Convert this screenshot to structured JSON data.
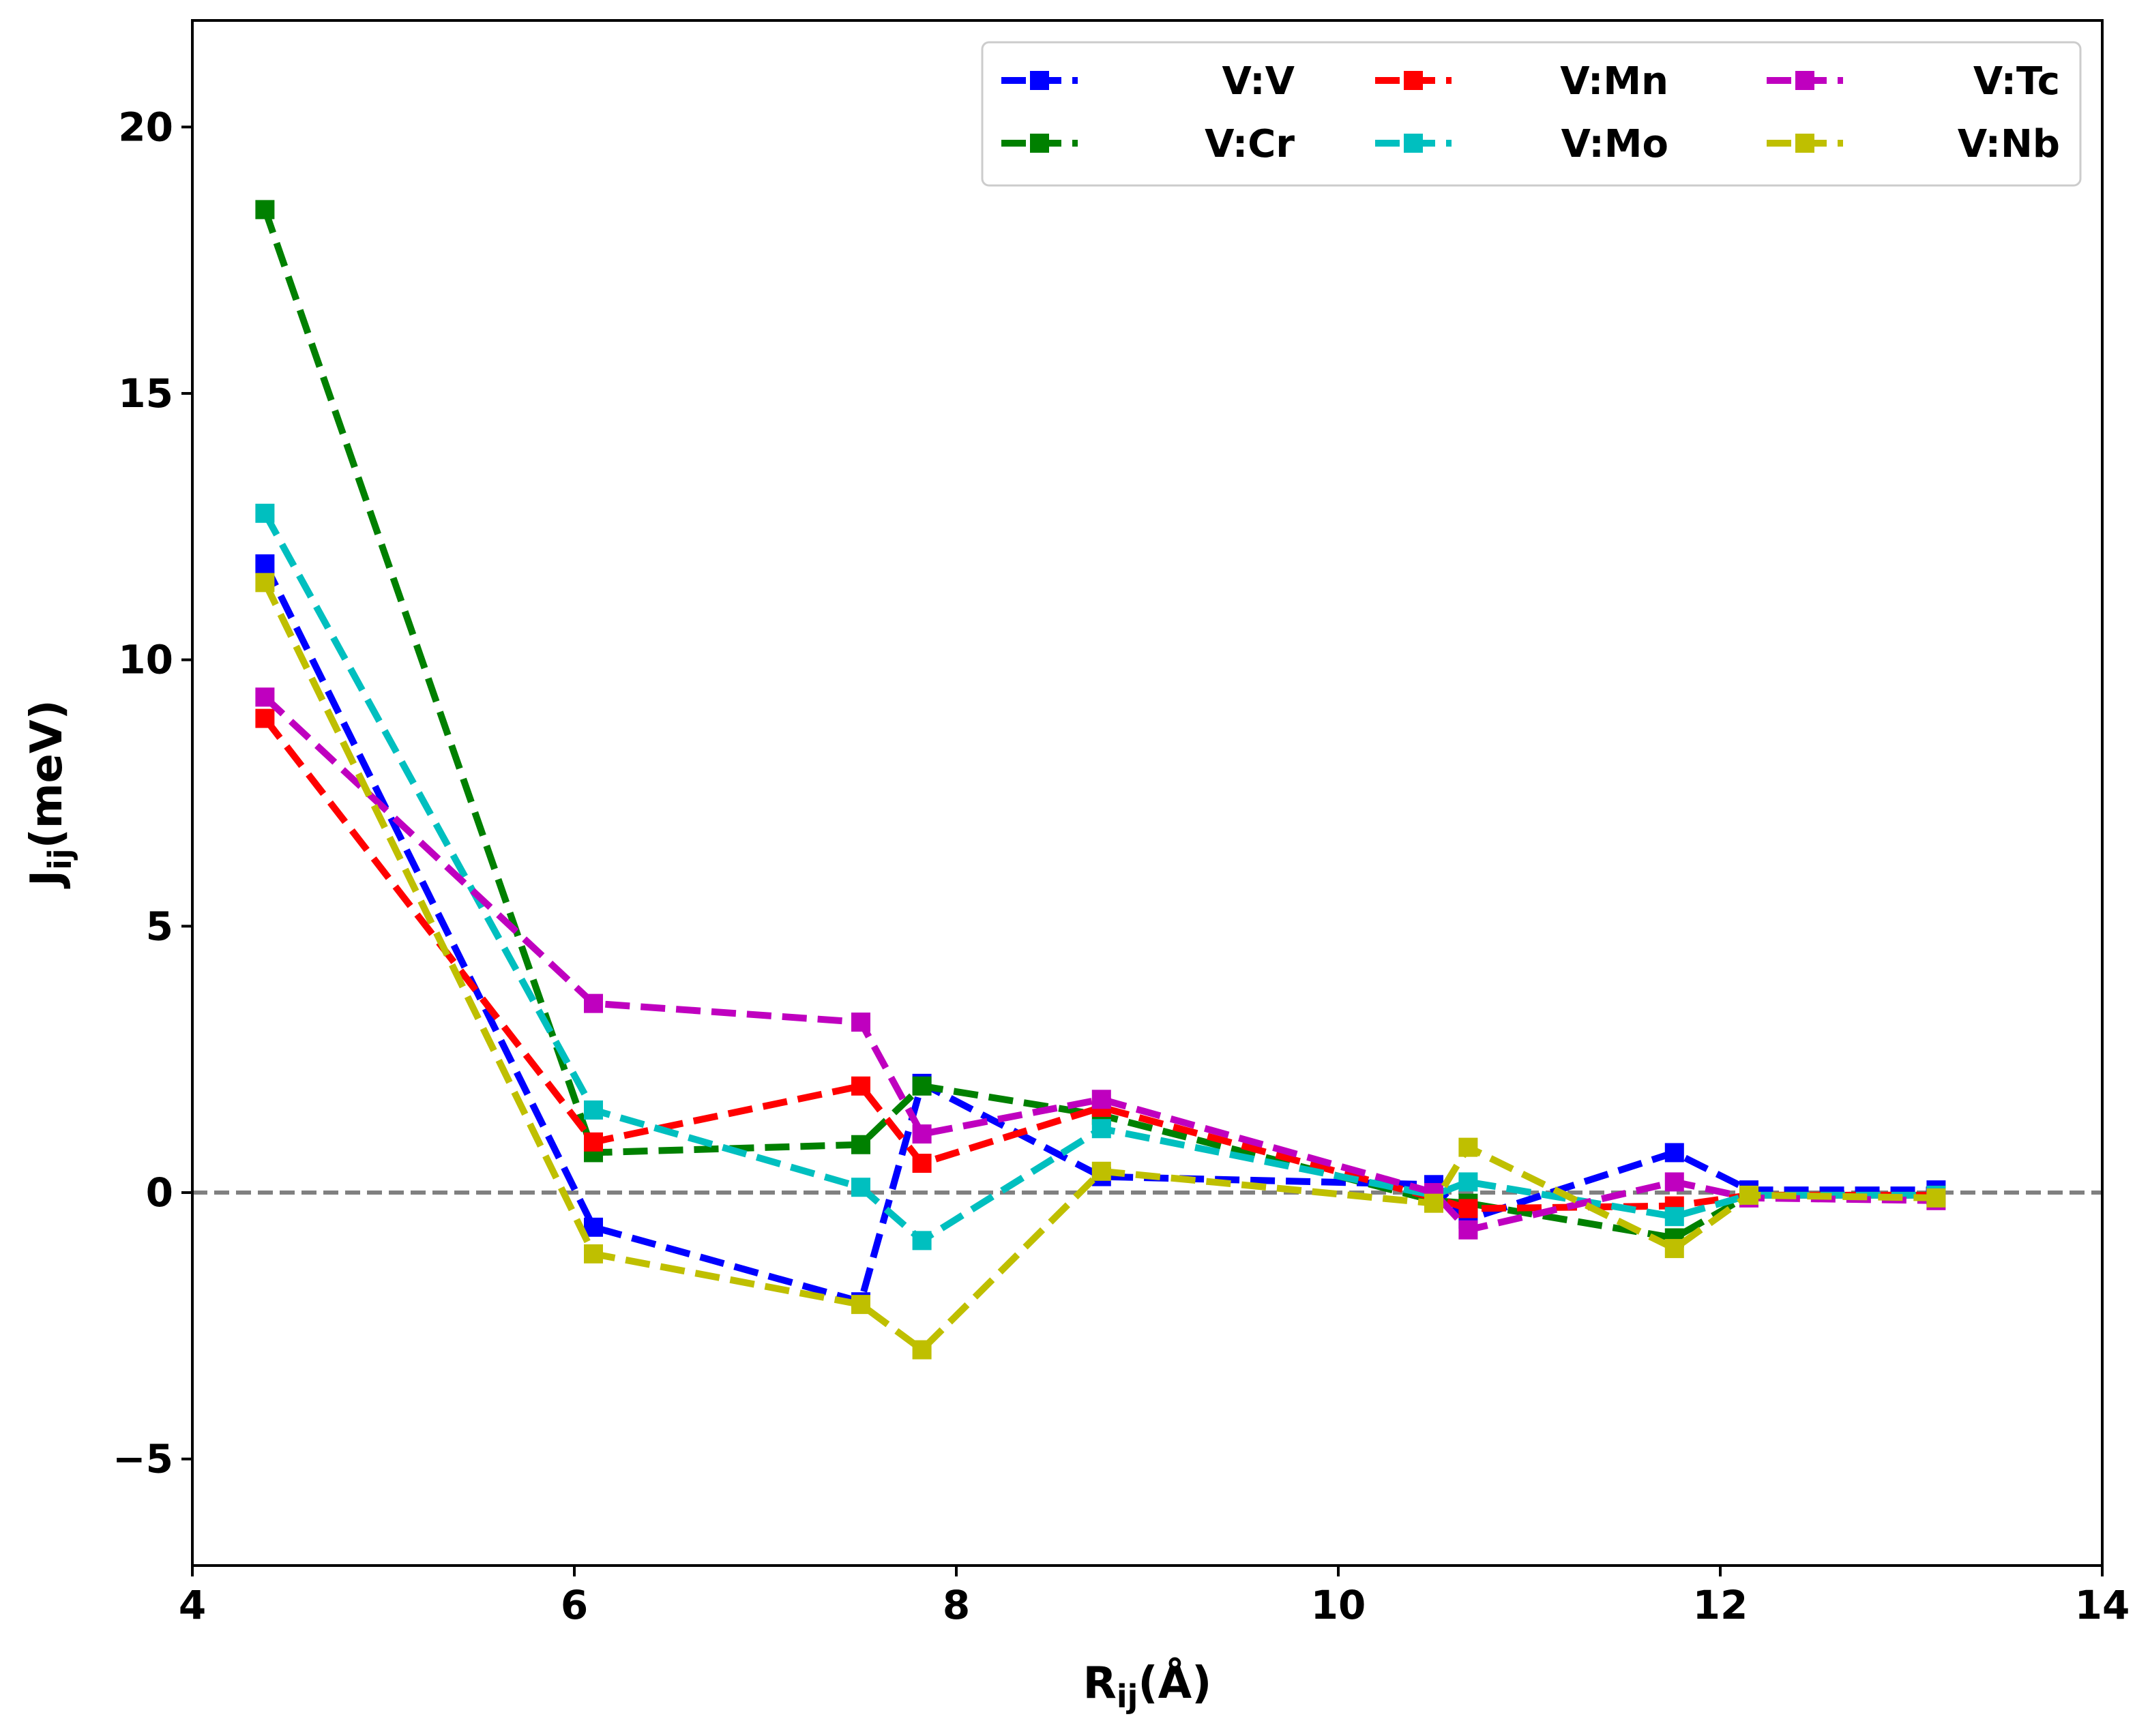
{
  "chart_data": {
    "type": "line",
    "xlabel": {
      "main": "R",
      "sub": "ij",
      "rest": "(Å)"
    },
    "ylabel": {
      "main": "J",
      "sub": "ij",
      "rest": "(meV)"
    },
    "xlim": [
      4,
      14
    ],
    "ylim": [
      -7,
      22
    ],
    "xticks": [
      4,
      6,
      8,
      10,
      12,
      14
    ],
    "yticks": [
      -5,
      0,
      5,
      10,
      15,
      20
    ],
    "ytick_labels": [
      "−5",
      "0",
      "5",
      "10",
      "15",
      "20"
    ],
    "reference_line": {
      "y": 0,
      "color": "#808080",
      "style": "dashed"
    },
    "grid": false,
    "legend_position": "top-right",
    "legend_columns": 3,
    "x": [
      4.38,
      6.1,
      7.5,
      7.82,
      8.76,
      10.5,
      10.68,
      11.76,
      12.15,
      13.13
    ],
    "series": [
      {
        "name": "V:V",
        "color": "#0000ff",
        "values": [
          11.8,
          -0.65,
          -2.05,
          2.05,
          0.3,
          0.15,
          -0.5,
          0.75,
          0.05,
          0.05
        ]
      },
      {
        "name": "V:Cr",
        "color": "#008000",
        "values": [
          18.45,
          0.75,
          0.9,
          2.0,
          1.45,
          -0.15,
          -0.2,
          -0.85,
          -0.05,
          -0.05
        ]
      },
      {
        "name": "V:Mn",
        "color": "#ff0000",
        "values": [
          8.9,
          0.95,
          2.0,
          0.55,
          1.6,
          -0.1,
          -0.3,
          -0.25,
          -0.05,
          -0.05
        ]
      },
      {
        "name": "V:Mo",
        "color": "#00bfbf",
        "values": [
          12.75,
          1.55,
          0.1,
          -0.9,
          1.2,
          -0.05,
          0.2,
          -0.45,
          -0.05,
          -0.05
        ]
      },
      {
        "name": "V:Tc",
        "color": "#bf00bf",
        "values": [
          9.3,
          3.55,
          3.2,
          1.1,
          1.75,
          0.0,
          -0.7,
          0.2,
          -0.1,
          -0.15
        ]
      },
      {
        "name": "V:Nb",
        "color": "#bfbf00",
        "values": [
          11.45,
          -1.15,
          -2.1,
          -2.95,
          0.4,
          -0.2,
          0.85,
          -1.05,
          -0.05,
          -0.1
        ]
      }
    ]
  }
}
